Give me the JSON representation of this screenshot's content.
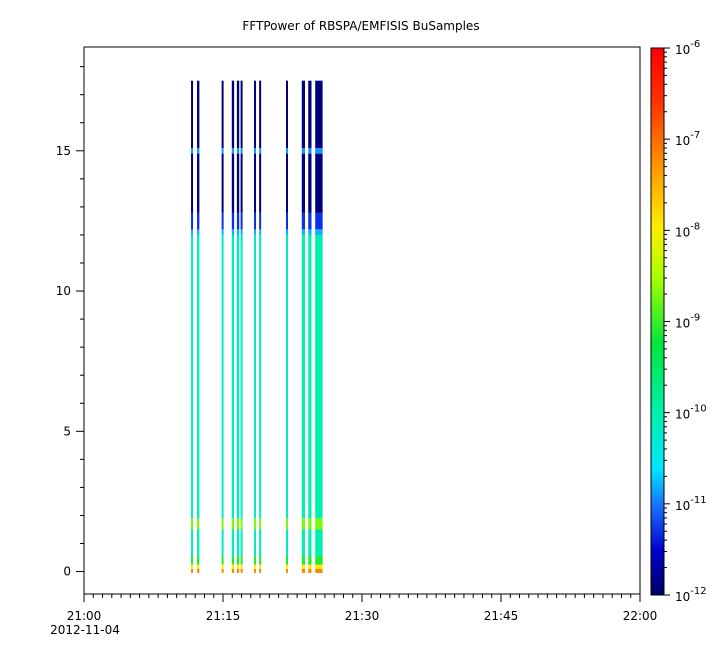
{
  "chart_data": {
    "type": "heatmap",
    "title": "FFTPower of RBSPA/EMFISIS  BuSamples",
    "xlabel": "",
    "ylabel": "",
    "x_ticks": [
      {
        "label": "21:00",
        "sublabel": "2012-11-04",
        "minutes": 0
      },
      {
        "label": "21:15",
        "sublabel": "",
        "minutes": 15
      },
      {
        "label": "21:30",
        "sublabel": "",
        "minutes": 30
      },
      {
        "label": "21:45",
        "sublabel": "",
        "minutes": 45
      },
      {
        "label": "22:00",
        "sublabel": "",
        "minutes": 60
      }
    ],
    "xlim_minutes": [
      0,
      60
    ],
    "ylim": [
      -0.8,
      18.7
    ],
    "y_ticks": [
      0,
      5,
      10,
      15
    ],
    "colorbar": {
      "scale": "log",
      "range": [
        1e-12,
        1e-06
      ],
      "ticks": [
        {
          "base": "10",
          "exp": "-12",
          "value": -12
        },
        {
          "base": "10",
          "exp": "-11",
          "value": -11
        },
        {
          "base": "10",
          "exp": "-10",
          "value": -10
        },
        {
          "base": "10",
          "exp": "-9",
          "value": -9
        },
        {
          "base": "10",
          "exp": "-8",
          "value": -8
        },
        {
          "base": "10",
          "exp": "-7",
          "value": -7
        },
        {
          "base": "10",
          "exp": "-6",
          "value": -6
        }
      ]
    },
    "frequency_top": 17.5,
    "strips": [
      {
        "start": 11.55,
        "end": 11.75,
        "band_log": -10.1
      },
      {
        "start": 12.2,
        "end": 12.45,
        "band_log": -10.1
      },
      {
        "start": 14.85,
        "end": 15.05,
        "band_log": -10.1
      },
      {
        "start": 15.95,
        "end": 16.2,
        "band_log": -10.1
      },
      {
        "start": 16.5,
        "end": 16.75,
        "band_log": -10.1
      },
      {
        "start": 16.9,
        "end": 17.1,
        "band_log": -10.1
      },
      {
        "start": 18.35,
        "end": 18.55,
        "band_log": -10.1
      },
      {
        "start": 18.9,
        "end": 19.1,
        "band_log": -10.1
      },
      {
        "start": 21.8,
        "end": 22.0,
        "band_log": -10.1
      },
      {
        "start": 23.5,
        "end": 23.85,
        "band_log": -10.0
      },
      {
        "start": 24.2,
        "end": 24.55,
        "band_log": -10.0
      },
      {
        "start": 24.95,
        "end": 25.75,
        "band_log": -10.0
      }
    ],
    "colors": {
      "background": "#ffffff",
      "axis": "#000000"
    }
  }
}
